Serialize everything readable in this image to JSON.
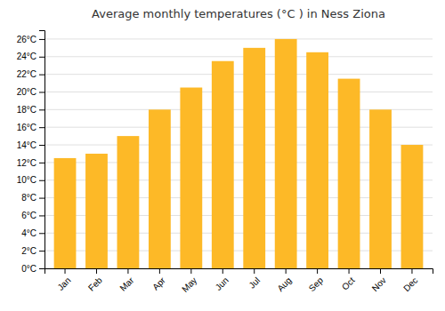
{
  "chart_data": {
    "type": "bar",
    "title": "Average monthly temperatures (°C ) in Ness Ziona",
    "categories": [
      "Jan",
      "Feb",
      "Mar",
      "Apr",
      "May",
      "Jun",
      "Jul",
      "Aug",
      "Sep",
      "Oct",
      "Nov",
      "Dec"
    ],
    "values": [
      12.5,
      13.0,
      15.0,
      18.0,
      20.5,
      23.5,
      25.0,
      26.0,
      24.5,
      21.5,
      18.0,
      14.0
    ],
    "color": "#FDB927",
    "ylim": [
      0,
      27
    ],
    "yticks": [
      {
        "value": 0,
        "label": "0°C"
      },
      {
        "value": 2,
        "label": "2°C"
      },
      {
        "value": 4,
        "label": "4°C"
      },
      {
        "value": 6,
        "label": "6°C"
      },
      {
        "value": 8,
        "label": "8°C"
      },
      {
        "value": 10,
        "label": "10°C"
      },
      {
        "value": 12,
        "label": "12°C"
      },
      {
        "value": 14,
        "label": "14°C"
      },
      {
        "value": 16,
        "label": "16°C"
      },
      {
        "value": 18,
        "label": "18°C"
      },
      {
        "value": 20,
        "label": "20°C"
      },
      {
        "value": 22,
        "label": "22°C"
      },
      {
        "value": 24,
        "label": "24°C"
      },
      {
        "value": 26,
        "label": "26°C"
      }
    ],
    "grid": true
  }
}
